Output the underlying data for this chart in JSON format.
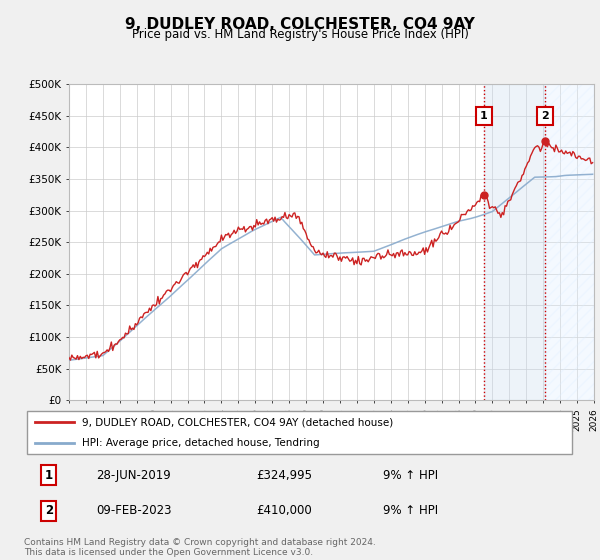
{
  "title": "9, DUDLEY ROAD, COLCHESTER, CO4 9AY",
  "subtitle": "Price paid vs. HM Land Registry's House Price Index (HPI)",
  "ylim": [
    0,
    500000
  ],
  "yticks": [
    0,
    50000,
    100000,
    150000,
    200000,
    250000,
    300000,
    350000,
    400000,
    450000,
    500000
  ],
  "ytick_labels": [
    "£0",
    "£50K",
    "£100K",
    "£150K",
    "£200K",
    "£250K",
    "£300K",
    "£350K",
    "£400K",
    "£450K",
    "£500K"
  ],
  "xlim_start": 1995.0,
  "xlim_end": 2026.0,
  "marker1_date": 2019.49,
  "marker2_date": 2023.11,
  "marker1_price": 324995,
  "marker2_price": 410000,
  "legend_line1": "9, DUDLEY ROAD, COLCHESTER, CO4 9AY (detached house)",
  "legend_line2": "HPI: Average price, detached house, Tendring",
  "table_row1": [
    "1",
    "28-JUN-2019",
    "£324,995",
    "9% ↑ HPI"
  ],
  "table_row2": [
    "2",
    "09-FEB-2023",
    "£410,000",
    "9% ↑ HPI"
  ],
  "footer": "Contains HM Land Registry data © Crown copyright and database right 2024.\nThis data is licensed under the Open Government Licence v3.0.",
  "line_color_red": "#cc2222",
  "line_color_blue": "#88aacc",
  "grid_color": "#cccccc",
  "bg_color": "#f0f0f0",
  "plot_bg": "#ffffff",
  "shade_between": "#ccddf0",
  "shade_after": "#ddeeff"
}
